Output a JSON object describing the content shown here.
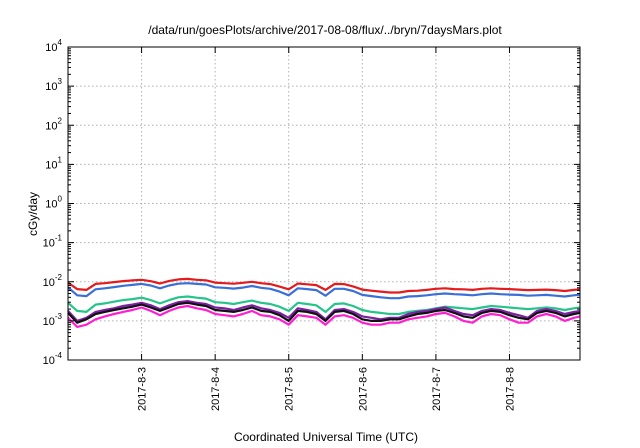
{
  "chart_data": {
    "type": "line",
    "title": "/data/run/goesPlots/archive/2017-08-08/flux/../bryn/7daysMars.plot",
    "xlabel": "Coordinated Universal Time (UTC)",
    "ylabel": "cGy/day",
    "yscale": "log",
    "ylim": [
      0.0001,
      10000
    ],
    "y_ticks": [
      {
        "exp": "-4",
        "value": 0.0001
      },
      {
        "exp": "-3",
        "value": 0.001
      },
      {
        "exp": "-2",
        "value": 0.01
      },
      {
        "exp": "-1",
        "value": 0.1
      },
      {
        "exp": "0",
        "value": 1
      },
      {
        "exp": "1",
        "value": 10
      },
      {
        "exp": "2",
        "value": 100
      },
      {
        "exp": "3",
        "value": 1000
      },
      {
        "exp": "4",
        "value": 10000
      }
    ],
    "x_range": [
      "2017-08-02T00:00",
      "2017-08-08T23:00"
    ],
    "x_ticks": [
      {
        "label": "2017-8-3",
        "time": "2017-08-03T00:00"
      },
      {
        "label": "2017-8-4",
        "time": "2017-08-04T00:00"
      },
      {
        "label": "2017-8-5",
        "time": "2017-08-05T00:00"
      },
      {
        "label": "2017-8-6",
        "time": "2017-08-06T00:00"
      },
      {
        "label": "2017-8-7",
        "time": "2017-08-07T00:00"
      },
      {
        "label": "2017-8-8",
        "time": "2017-08-08T00:00"
      }
    ],
    "grid": true,
    "x": [
      "2017-08-02T00:00",
      "2017-08-02T03:00",
      "2017-08-02T06:00",
      "2017-08-02T09:00",
      "2017-08-02T12:00",
      "2017-08-02T15:00",
      "2017-08-02T18:00",
      "2017-08-02T21:00",
      "2017-08-03T00:00",
      "2017-08-03T03:00",
      "2017-08-03T06:00",
      "2017-08-03T09:00",
      "2017-08-03T12:00",
      "2017-08-03T15:00",
      "2017-08-03T18:00",
      "2017-08-03T21:00",
      "2017-08-04T00:00",
      "2017-08-04T03:00",
      "2017-08-04T06:00",
      "2017-08-04T09:00",
      "2017-08-04T12:00",
      "2017-08-04T15:00",
      "2017-08-04T18:00",
      "2017-08-04T21:00",
      "2017-08-05T00:00",
      "2017-08-05T03:00",
      "2017-08-05T06:00",
      "2017-08-05T09:00",
      "2017-08-05T12:00",
      "2017-08-05T15:00",
      "2017-08-05T18:00",
      "2017-08-05T21:00",
      "2017-08-06T00:00",
      "2017-08-06T03:00",
      "2017-08-06T06:00",
      "2017-08-06T09:00",
      "2017-08-06T12:00",
      "2017-08-06T15:00",
      "2017-08-06T18:00",
      "2017-08-06T21:00",
      "2017-08-07T00:00",
      "2017-08-07T03:00",
      "2017-08-07T06:00",
      "2017-08-07T09:00",
      "2017-08-07T12:00",
      "2017-08-07T15:00",
      "2017-08-07T18:00",
      "2017-08-07T21:00",
      "2017-08-08T00:00",
      "2017-08-08T03:00",
      "2017-08-08T06:00",
      "2017-08-08T09:00",
      "2017-08-08T12:00",
      "2017-08-08T15:00",
      "2017-08-08T18:00",
      "2017-08-08T21:00",
      "2017-08-08T23:00"
    ],
    "series": [
      {
        "color": "#e41a1c",
        "values": [
          0.0095,
          0.0065,
          0.0062,
          0.0088,
          0.0092,
          0.0098,
          0.0104,
          0.0108,
          0.0112,
          0.0103,
          0.009,
          0.0105,
          0.0115,
          0.0118,
          0.0112,
          0.0109,
          0.0095,
          0.0092,
          0.0089,
          0.0094,
          0.01,
          0.0092,
          0.0087,
          0.0075,
          0.0064,
          0.009,
          0.0086,
          0.0082,
          0.0062,
          0.0088,
          0.0087,
          0.0076,
          0.0063,
          0.0059,
          0.0056,
          0.0053,
          0.0053,
          0.0058,
          0.0059,
          0.0062,
          0.0066,
          0.0068,
          0.0065,
          0.0064,
          0.0062,
          0.0066,
          0.0068,
          0.0066,
          0.0065,
          0.0063,
          0.0061,
          0.0062,
          0.0063,
          0.0061,
          0.0058,
          0.0062,
          0.0064
        ]
      },
      {
        "color": "#3a6fd8",
        "values": [
          0.0072,
          0.0045,
          0.0043,
          0.0064,
          0.0068,
          0.0073,
          0.0079,
          0.0083,
          0.0088,
          0.008,
          0.0068,
          0.008,
          0.0089,
          0.0092,
          0.0088,
          0.0085,
          0.0072,
          0.007,
          0.0067,
          0.0071,
          0.0078,
          0.007,
          0.0066,
          0.0056,
          0.0045,
          0.0068,
          0.0065,
          0.0061,
          0.0044,
          0.0066,
          0.0066,
          0.0058,
          0.0046,
          0.0043,
          0.004,
          0.0038,
          0.0038,
          0.0042,
          0.0043,
          0.0045,
          0.0048,
          0.005,
          0.0048,
          0.0047,
          0.0045,
          0.0048,
          0.005,
          0.0048,
          0.0047,
          0.0046,
          0.0044,
          0.0045,
          0.0046,
          0.0044,
          0.0042,
          0.0045,
          0.0047
        ]
      },
      {
        "color": "#24c48a",
        "values": [
          0.0029,
          0.0018,
          0.0017,
          0.0026,
          0.0028,
          0.0031,
          0.0034,
          0.0036,
          0.0039,
          0.0034,
          0.0028,
          0.0034,
          0.004,
          0.0042,
          0.0039,
          0.0037,
          0.003,
          0.0029,
          0.0027,
          0.003,
          0.0033,
          0.0029,
          0.0027,
          0.0023,
          0.0018,
          0.0029,
          0.0027,
          0.0025,
          0.0017,
          0.0027,
          0.0028,
          0.0024,
          0.0019,
          0.0017,
          0.0016,
          0.0015,
          0.0015,
          0.0017,
          0.0018,
          0.0019,
          0.0021,
          0.0023,
          0.0022,
          0.0021,
          0.002,
          0.0022,
          0.0024,
          0.0023,
          0.0022,
          0.0021,
          0.002,
          0.0021,
          0.0022,
          0.0021,
          0.0019,
          0.0021,
          0.0022
        ]
      },
      {
        "color": "#7d1fa5",
        "values": [
          0.0018,
          0.001,
          0.0012,
          0.0017,
          0.0019,
          0.0021,
          0.0024,
          0.0026,
          0.0029,
          0.0025,
          0.002,
          0.0025,
          0.003,
          0.0032,
          0.0029,
          0.0027,
          0.0022,
          0.0021,
          0.0019,
          0.0022,
          0.0025,
          0.0021,
          0.0019,
          0.0016,
          0.0012,
          0.0021,
          0.0019,
          0.0017,
          0.0011,
          0.0019,
          0.002,
          0.0017,
          0.0013,
          0.0012,
          0.0011,
          0.0012,
          0.0012,
          0.0015,
          0.0017,
          0.0018,
          0.002,
          0.0022,
          0.0018,
          0.0015,
          0.0014,
          0.0018,
          0.002,
          0.0019,
          0.0016,
          0.0014,
          0.0012,
          0.0018,
          0.002,
          0.0018,
          0.0015,
          0.0017,
          0.0018
        ]
      },
      {
        "color": "#111111",
        "values": [
          0.0016,
          0.0009,
          0.0011,
          0.0015,
          0.0017,
          0.0019,
          0.0021,
          0.0023,
          0.0026,
          0.0022,
          0.0018,
          0.0022,
          0.0027,
          0.0029,
          0.0026,
          0.0024,
          0.0019,
          0.0018,
          0.0017,
          0.0019,
          0.0022,
          0.0018,
          0.0017,
          0.0014,
          0.001,
          0.0018,
          0.0017,
          0.0015,
          0.001,
          0.0017,
          0.0018,
          0.0015,
          0.0011,
          0.001,
          0.001,
          0.0011,
          0.0011,
          0.0013,
          0.0015,
          0.0016,
          0.0018,
          0.0019,
          0.0016,
          0.0013,
          0.0012,
          0.0016,
          0.0018,
          0.0017,
          0.0014,
          0.0012,
          0.0011,
          0.0016,
          0.0018,
          0.0016,
          0.0013,
          0.0015,
          0.0016
        ]
      },
      {
        "color": "#ff1fd2",
        "values": [
          0.0012,
          0.0007,
          0.0008,
          0.0011,
          0.0013,
          0.0015,
          0.0017,
          0.0019,
          0.0022,
          0.0018,
          0.0014,
          0.0018,
          0.0022,
          0.0024,
          0.0021,
          0.0019,
          0.0015,
          0.0014,
          0.0013,
          0.0015,
          0.0018,
          0.0014,
          0.0013,
          0.0011,
          0.0008,
          0.0014,
          0.0013,
          0.0012,
          0.0008,
          0.0013,
          0.0014,
          0.0012,
          0.0009,
          0.0008,
          0.0008,
          0.0009,
          0.0009,
          0.0011,
          0.0012,
          0.0013,
          0.0015,
          0.0016,
          0.0013,
          0.001,
          0.0009,
          0.0013,
          0.0015,
          0.0014,
          0.0011,
          0.0009,
          0.0009,
          0.0013,
          0.0015,
          0.0013,
          0.001,
          0.0012,
          0.0013
        ]
      }
    ]
  }
}
